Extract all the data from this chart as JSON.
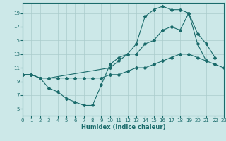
{
  "xlabel": "Humidex (Indice chaleur)",
  "bg_color": "#cce8e8",
  "grid_color": "#aacccc",
  "line_color": "#1a6b6b",
  "xmin": 0,
  "xmax": 23,
  "ymin": 4,
  "ymax": 20.5,
  "yticks": [
    5,
    7,
    9,
    11,
    13,
    15,
    17,
    19
  ],
  "xticks": [
    0,
    1,
    2,
    3,
    4,
    5,
    6,
    7,
    8,
    9,
    10,
    11,
    12,
    13,
    14,
    15,
    16,
    17,
    18,
    19,
    20,
    21,
    22,
    23
  ],
  "line1_x": [
    0,
    1,
    2,
    3,
    4,
    5,
    6,
    7,
    8,
    9,
    10,
    11,
    12,
    13,
    14,
    15,
    16,
    17,
    18,
    19,
    20,
    21,
    22,
    23
  ],
  "line1_y": [
    10,
    10,
    9.5,
    9.5,
    9.5,
    9.5,
    9.5,
    9.5,
    9.5,
    9.5,
    10,
    10,
    10.5,
    11,
    11,
    11.5,
    12,
    12.5,
    13,
    13,
    12.5,
    12,
    11.5,
    11
  ],
  "line2_x": [
    0,
    1,
    2,
    3,
    4,
    5,
    6,
    7,
    8,
    9,
    10,
    11,
    12,
    13,
    14,
    15,
    16,
    17,
    18,
    19,
    20,
    21
  ],
  "line2_y": [
    10,
    10,
    9.5,
    8,
    7.5,
    6.5,
    6,
    5.5,
    5.5,
    8.5,
    11.5,
    12.5,
    13,
    13,
    14.5,
    15,
    16.5,
    17,
    16.5,
    19,
    14.5,
    12
  ],
  "line3_x": [
    0,
    1,
    2,
    3,
    10,
    11,
    12,
    13,
    14,
    15,
    16,
    17,
    18,
    19,
    20,
    21,
    22
  ],
  "line3_y": [
    10,
    10,
    9.5,
    9.5,
    11,
    12,
    13,
    14.5,
    18.5,
    19.5,
    20,
    19.5,
    19.5,
    19,
    16,
    14.5,
    12.5
  ]
}
